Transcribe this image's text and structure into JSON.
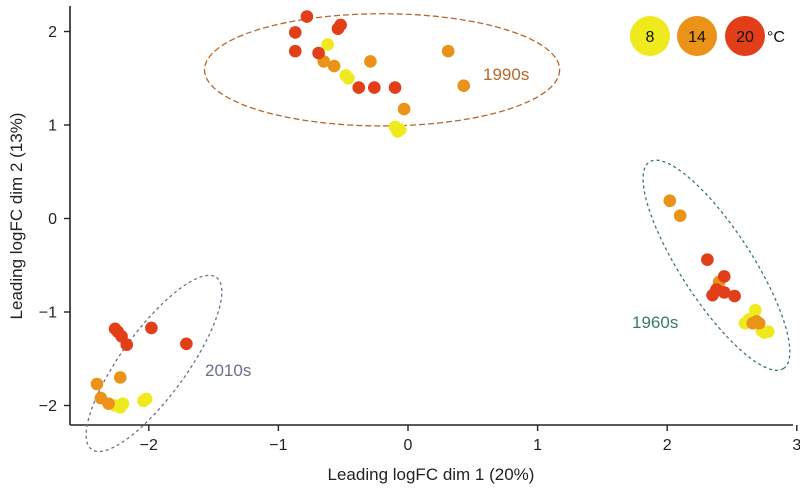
{
  "chart_data": {
    "type": "scatter",
    "xlabel": "Leading logFC dim 1 (20%)",
    "ylabel": "Leading logFC dim 2 (13%)",
    "xlim": [
      -2.6,
      3.0
    ],
    "ylim": [
      -2.2,
      2.3
    ],
    "xticks": [
      -2,
      -1,
      0,
      1,
      2,
      3
    ],
    "yticks": [
      -2,
      -1,
      0,
      1,
      2
    ],
    "grid": false,
    "colors": {
      "8": "#eeea1e",
      "14": "#ea9318",
      "20": "#e23e17"
    },
    "legend": {
      "placement": "top-right",
      "entries": [
        "8",
        "14",
        "20"
      ],
      "unit": "°C"
    },
    "series": [
      {
        "name": "8",
        "points": [
          [
            -0.62,
            1.86
          ],
          [
            -0.48,
            1.53
          ],
          [
            -0.46,
            1.5
          ],
          [
            -0.1,
            0.98
          ],
          [
            -0.08,
            0.93
          ],
          [
            -0.06,
            0.95
          ],
          [
            -2.2,
            -1.98
          ],
          [
            -2.22,
            -2.02
          ],
          [
            -2.26,
            -2.0
          ],
          [
            -2.04,
            -1.95
          ],
          [
            -2.02,
            -1.93
          ],
          [
            2.68,
            -0.98
          ],
          [
            2.63,
            -1.08
          ],
          [
            2.6,
            -1.12
          ],
          [
            2.73,
            -1.2
          ],
          [
            2.75,
            -1.22
          ],
          [
            2.78,
            -1.21
          ]
        ]
      },
      {
        "name": "14",
        "points": [
          [
            -0.65,
            1.68
          ],
          [
            -0.57,
            1.63
          ],
          [
            -0.29,
            1.68
          ],
          [
            -0.03,
            1.17
          ],
          [
            0.31,
            1.79
          ],
          [
            0.43,
            1.42
          ],
          [
            -2.4,
            -1.77
          ],
          [
            -2.37,
            -1.92
          ],
          [
            -2.31,
            -1.98
          ],
          [
            -2.22,
            -1.7
          ],
          [
            2.02,
            0.19
          ],
          [
            2.1,
            0.03
          ],
          [
            2.4,
            -0.68
          ],
          [
            2.66,
            -1.12
          ],
          [
            2.69,
            -1.1
          ],
          [
            2.71,
            -1.12
          ]
        ]
      },
      {
        "name": "20",
        "points": [
          [
            -0.78,
            2.16
          ],
          [
            -0.87,
            1.99
          ],
          [
            -0.87,
            1.79
          ],
          [
            -0.69,
            1.77
          ],
          [
            -0.54,
            2.03
          ],
          [
            -0.52,
            2.07
          ],
          [
            -0.38,
            1.4
          ],
          [
            -0.26,
            1.4
          ],
          [
            -0.1,
            1.4
          ],
          [
            -2.26,
            -1.18
          ],
          [
            -2.24,
            -1.21
          ],
          [
            -2.21,
            -1.26
          ],
          [
            -2.17,
            -1.35
          ],
          [
            -1.98,
            -1.17
          ],
          [
            -1.71,
            -1.34
          ],
          [
            2.31,
            -0.44
          ],
          [
            2.44,
            -0.62
          ],
          [
            2.38,
            -0.76
          ],
          [
            2.35,
            -0.82
          ],
          [
            2.44,
            -0.79
          ],
          [
            2.52,
            -0.83
          ]
        ]
      }
    ],
    "groups": [
      {
        "label": "1990s",
        "color": "#b5682c",
        "dash": "6,3",
        "cx": -0.2,
        "cy": 1.59,
        "rx": 1.37,
        "ry": 0.6,
        "rotate": 0
      },
      {
        "label": "1960s",
        "color": "#3a7b5f",
        "dash": "3,3",
        "cx": 2.38,
        "cy": -0.5,
        "rx": 0.95,
        "ry": 0.38,
        "rotate": 57
      },
      {
        "label": "2010s",
        "color": "#6a6f8c",
        "dash": "3,3",
        "cx": -1.96,
        "cy": -1.55,
        "rx": 0.82,
        "ry": 0.35,
        "rotate": -54
      }
    ]
  }
}
